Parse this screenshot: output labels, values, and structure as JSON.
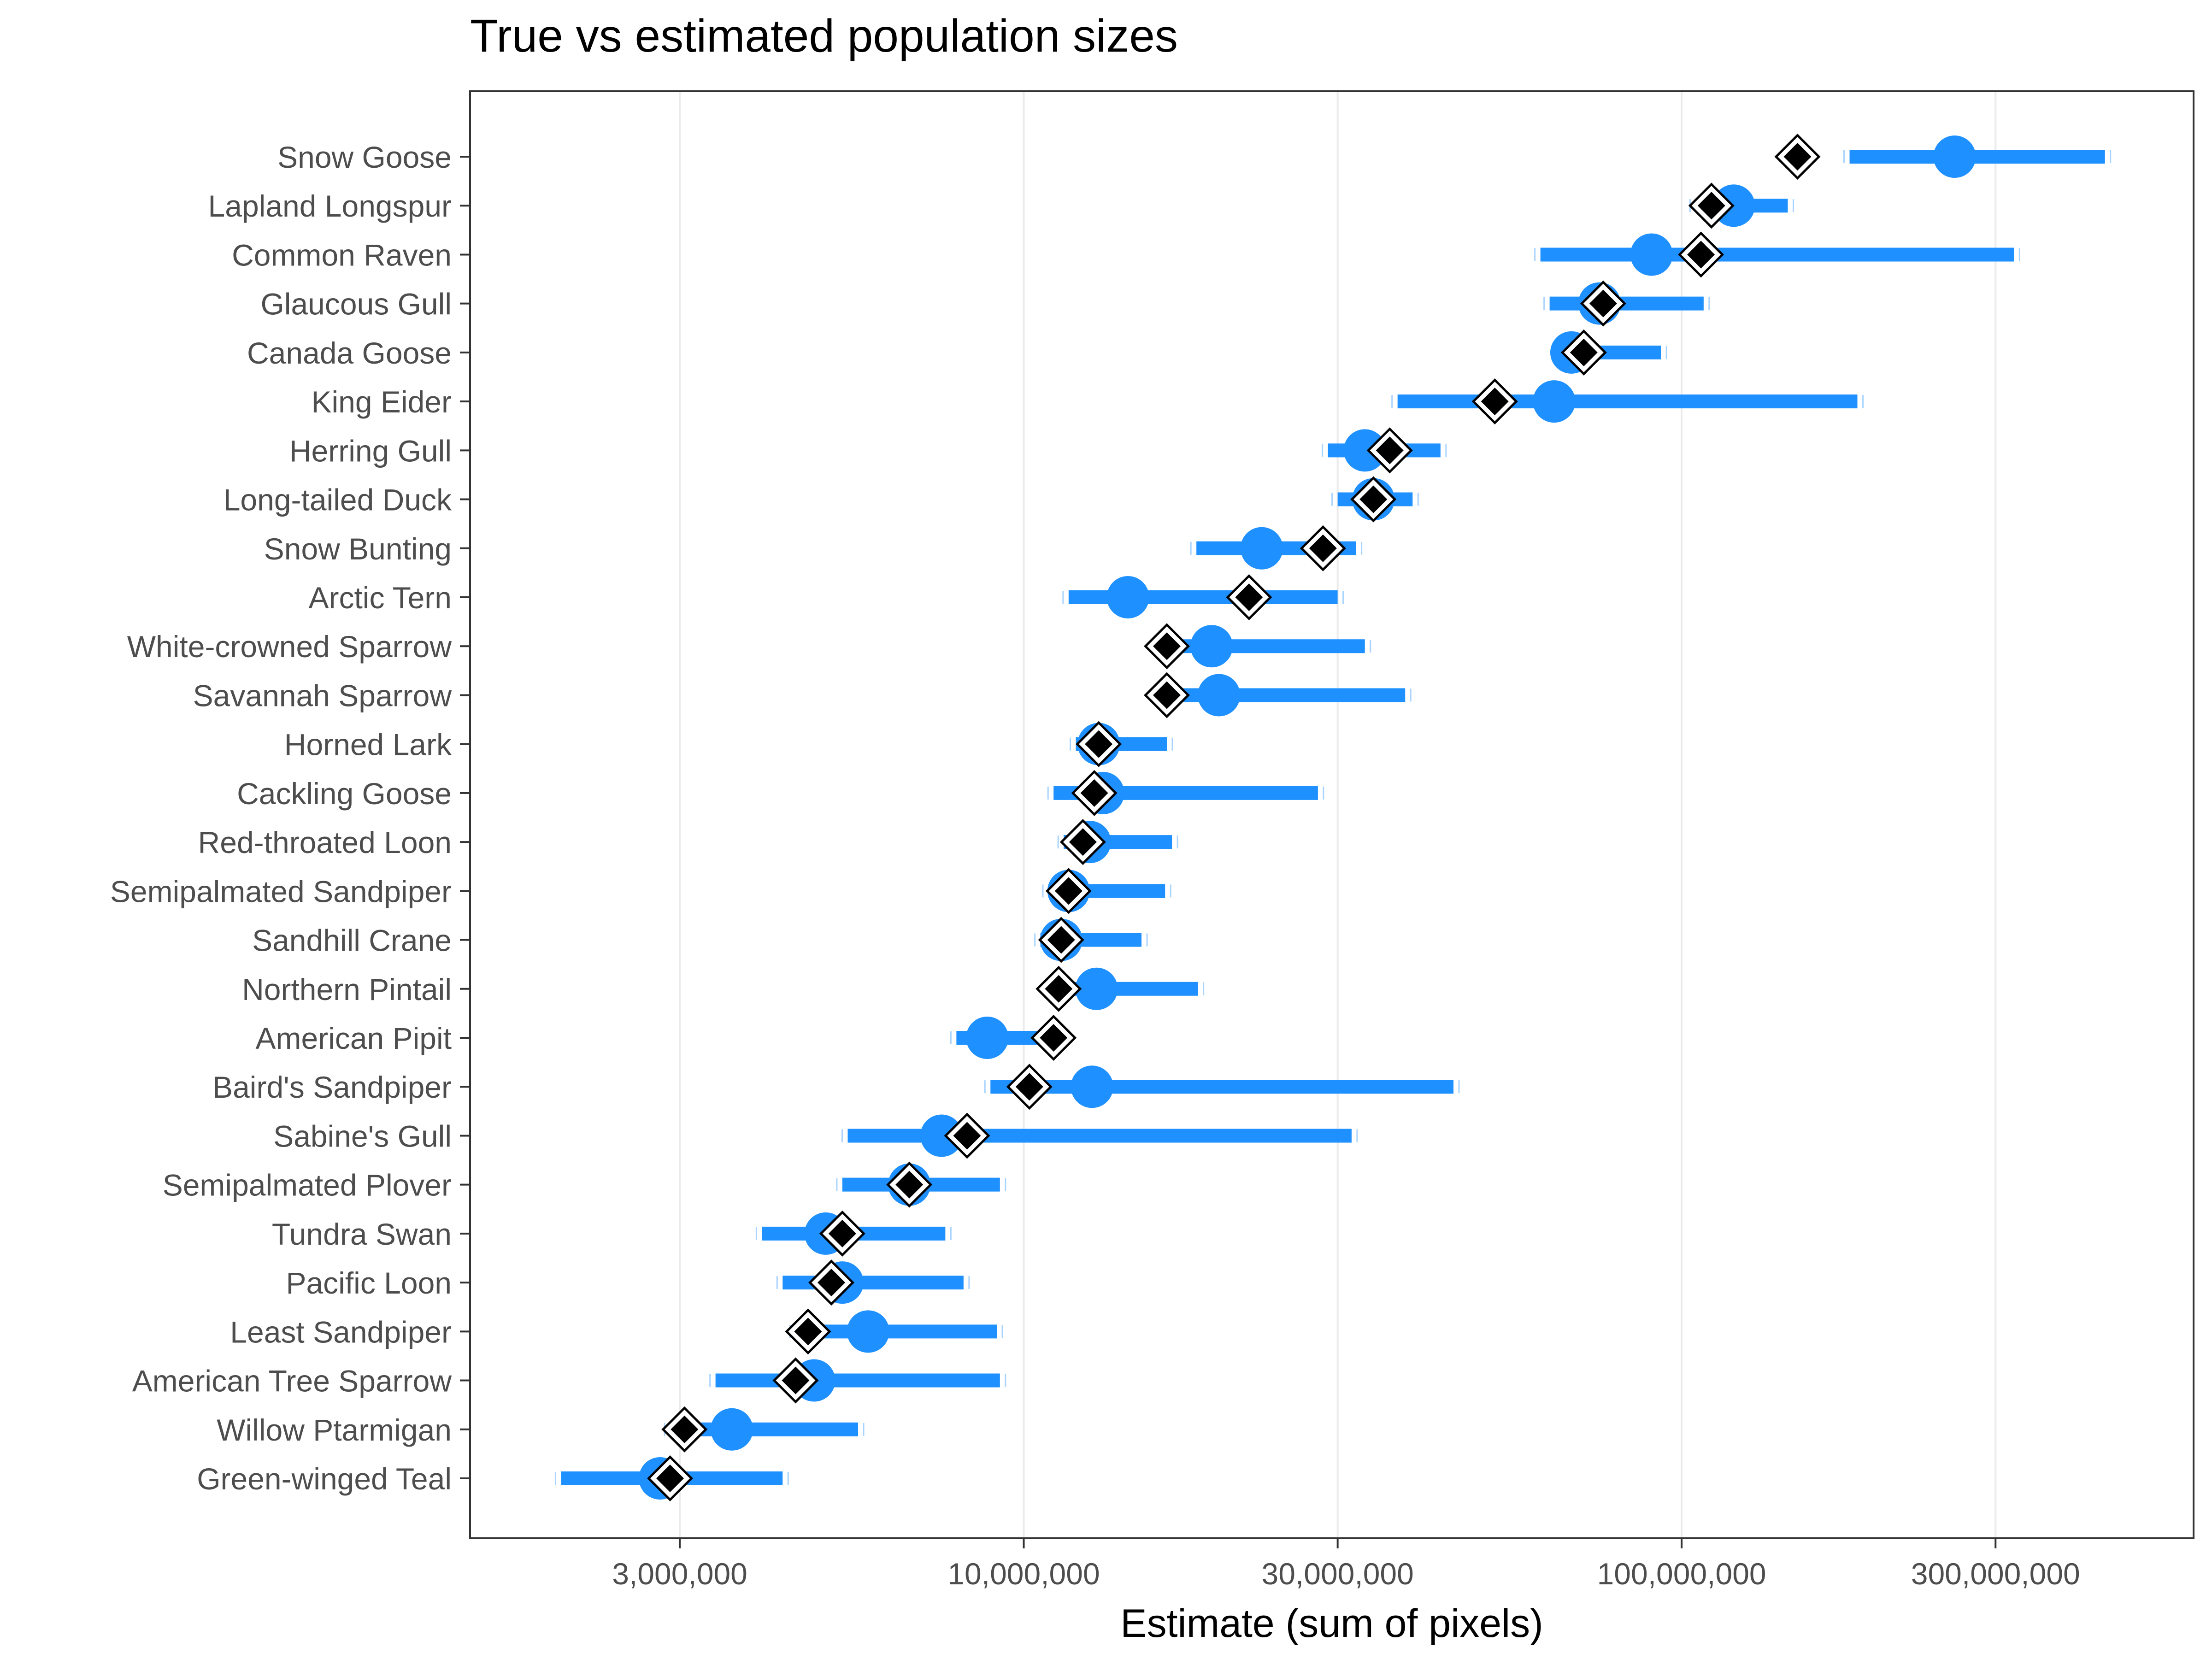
{
  "chart_data": {
    "type": "scatter",
    "title": "True vs estimated population sizes",
    "xlabel": "Estimate (sum of pixels)",
    "ylabel": "",
    "x_scale": "log10",
    "xlim": [
      1440000,
      600000000
    ],
    "x_ticks": [
      3000000,
      10000000,
      30000000,
      100000000,
      300000000
    ],
    "x_tick_labels": [
      "3,000,000",
      "10,000,000",
      "30,000,000",
      "100,000,000",
      "300,000,000"
    ],
    "grid": "vertical major gridlines",
    "colors": {
      "estimate": "#1e90ff",
      "interval": "#1e90ff",
      "true_marker_fill": "#000000",
      "true_marker_outline": "#ffffff",
      "grid": "#ebebeb",
      "frame": "#333333",
      "axis_text": "#4d4d4d",
      "title_text": "#000000"
    },
    "series": [
      {
        "role": "estimate",
        "marker": "circle"
      },
      {
        "role": "interval",
        "marker": "horizontal bar"
      },
      {
        "role": "true",
        "marker": "diamond"
      }
    ],
    "categories": [
      "Snow Goose",
      "Lapland Longspur",
      "Common Raven",
      "Glaucous Gull",
      "Canada Goose",
      "King Eider",
      "Herring Gull",
      "Long-tailed Duck",
      "Snow Bunting",
      "Arctic Tern",
      "White-crowned Sparrow",
      "Savannah Sparrow",
      "Horned Lark",
      "Cackling Goose",
      "Red-throated Loon",
      "Semipalmated Sandpiper",
      "Sandhill Crane",
      "Northern Pintail",
      "American Pipit",
      "Baird's Sandpiper",
      "Sabine's Gull",
      "Semipalmated Plover",
      "Tundra Swan",
      "Pacific Loon",
      "Least Sandpiper",
      "American Tree Sparrow",
      "Willow Ptarmigan",
      "Green-winged Teal"
    ],
    "estimate": [
      260000000,
      120000000,
      90000000,
      75000000,
      68000000,
      64000000,
      33000000,
      34000000,
      23000000,
      14400000,
      19300000,
      19800000,
      13000000,
      13200000,
      12600000,
      11700000,
      11400000,
      12900000,
      8800000,
      12700000,
      7500000,
      6700000,
      5000000,
      5300000,
      5800000,
      4800000,
      3600000,
      2800000
    ],
    "lower": [
      180000000,
      105000000,
      61000000,
      63000000,
      66000000,
      37000000,
      29000000,
      30000000,
      18300000,
      11700000,
      16500000,
      17000000,
      12000000,
      11100000,
      11500000,
      10900000,
      10600000,
      11200000,
      7900000,
      8900000,
      5400000,
      5300000,
      4000000,
      4300000,
      4500000,
      3400000,
      2900000,
      1980000
    ],
    "upper": [
      440000000,
      145000000,
      320000000,
      108000000,
      93000000,
      185000000,
      43000000,
      39000000,
      32000000,
      30000000,
      33000000,
      38000000,
      16500000,
      28000000,
      16800000,
      16400000,
      15100000,
      18400000,
      11500000,
      45000000,
      31500000,
      9200000,
      7600000,
      8100000,
      9100000,
      9200000,
      5600000,
      4300000
    ],
    "true": [
      150000000,
      111000000,
      107000000,
      76000000,
      71000000,
      52000000,
      36000000,
      34000000,
      28500000,
      22000000,
      16500000,
      16500000,
      13000000,
      12800000,
      12300000,
      11700000,
      11400000,
      11300000,
      11100000,
      10200000,
      8200000,
      6700000,
      5300000,
      5100000,
      4700000,
      4500000,
      3050000,
      2900000
    ]
  }
}
